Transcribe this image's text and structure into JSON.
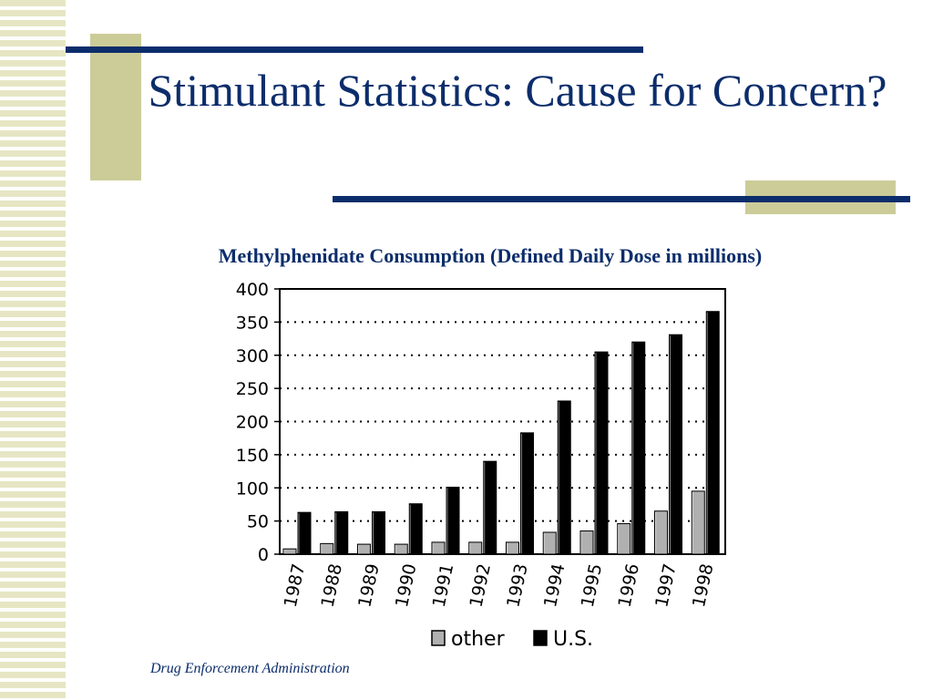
{
  "slide": {
    "title": "Stimulant Statistics: Cause for Concern?",
    "footer": "Drug Enforcement Administration"
  },
  "colors": {
    "title": "#0c2d6b",
    "accent_box": "#cccc99",
    "stripes": "#e6e6c4",
    "series_other": "#b0b0b0",
    "series_us": "#000000"
  },
  "chart_data": {
    "type": "bar",
    "title": "Methylphenidate Consumption (Defined Daily Dose in millions)",
    "xlabel": "",
    "ylabel": "",
    "categories": [
      "1987",
      "1988",
      "1989",
      "1990",
      "1991",
      "1992",
      "1993",
      "1994",
      "1995",
      "1996",
      "1997",
      "1998"
    ],
    "series": [
      {
        "name": "other",
        "values": [
          8,
          16,
          15,
          15,
          18,
          18,
          18,
          33,
          35,
          46,
          65,
          95
        ]
      },
      {
        "name": "U.S.",
        "values": [
          63,
          64,
          64,
          76,
          101,
          140,
          183,
          231,
          305,
          320,
          331,
          366
        ]
      }
    ],
    "ylim": [
      0,
      400
    ],
    "yticks": [
      "0",
      "50",
      "100",
      "150",
      "200",
      "250",
      "300",
      "350",
      "400"
    ],
    "grid": true,
    "legend": "bottom"
  }
}
